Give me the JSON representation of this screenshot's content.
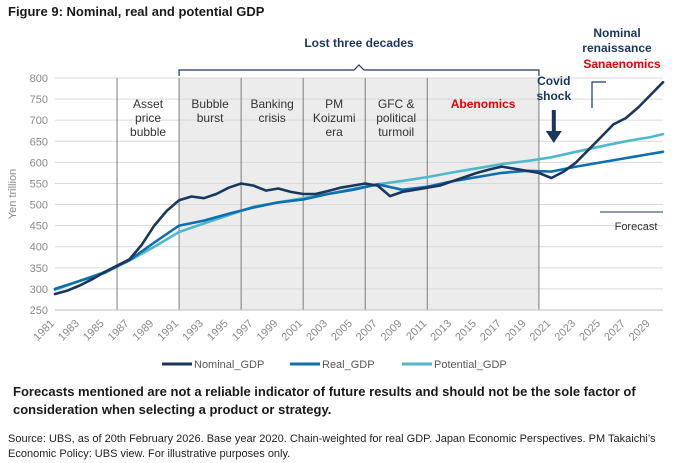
{
  "figure_title": "Figure 9: Nominal, real and potential GDP",
  "disclaimer": "Forecasts mentioned are not a reliable indicator of future results and should not be the sole factor of consideration when selecting a product or strategy.",
  "source": "Source: UBS, as of 20th February 2026. Base year 2020. Chain-weighted for real GDP. Japan Economic Perspectives. PM Takaichi’s Economic Policy: UBS view. For illustrative purposes only.",
  "colors": {
    "nominal": "#1b365d",
    "real": "#0c6fae",
    "potential": "#4fb9c9",
    "shade": "#ececec",
    "accent_red": "#e60000",
    "grid": "#d9d9d9",
    "axis_text": "#8a8a8a"
  },
  "chart_data": {
    "type": "line",
    "title": "Figure 9: Nominal, real and potential GDP",
    "ylabel": "Yen trillion",
    "xlabel": "",
    "xlim": [
      1981,
      2030
    ],
    "ylim": [
      250,
      800
    ],
    "yticks": [
      250,
      300,
      350,
      400,
      450,
      500,
      550,
      600,
      650,
      700,
      750,
      800
    ],
    "xticks": [
      1981,
      1983,
      1985,
      1987,
      1989,
      1991,
      1993,
      1995,
      1997,
      1999,
      2001,
      2003,
      2005,
      2007,
      2009,
      2011,
      2013,
      2015,
      2017,
      2019,
      2021,
      2023,
      2025,
      2027,
      2029
    ],
    "legend_position": "bottom",
    "series": [
      {
        "name": "Nominal_GDP",
        "color": "#1b365d",
        "x": [
          1981,
          1982,
          1983,
          1984,
          1985,
          1986,
          1987,
          1988,
          1989,
          1990,
          1991,
          1992,
          1993,
          1994,
          1995,
          1996,
          1997,
          1998,
          1999,
          2000,
          2001,
          2002,
          2003,
          2004,
          2005,
          2006,
          2007,
          2008,
          2009,
          2010,
          2011,
          2012,
          2013,
          2014,
          2015,
          2016,
          2017,
          2018,
          2019,
          2020,
          2021,
          2022,
          2023,
          2024,
          2025,
          2026,
          2027,
          2028,
          2029,
          2030
        ],
        "values": [
          288,
          296,
          308,
          323,
          340,
          355,
          370,
          405,
          450,
          485,
          510,
          519,
          515,
          525,
          540,
          550,
          545,
          533,
          538,
          530,
          525,
          525,
          532,
          540,
          545,
          550,
          545,
          520,
          530,
          535,
          540,
          545,
          555,
          565,
          575,
          583,
          590,
          585,
          580,
          575,
          563,
          578,
          600,
          630,
          660,
          690,
          705,
          730,
          760,
          790
        ]
      },
      {
        "name": "Real_GDP",
        "color": "#0c6fae",
        "x": [
          1981,
          1985,
          1987,
          1989,
          1991,
          1993,
          1995,
          1997,
          1999,
          2001,
          2003,
          2005,
          2007,
          2009,
          2011,
          2013,
          2015,
          2017,
          2019,
          2021,
          2023,
          2025,
          2027,
          2029,
          2030
        ],
        "values": [
          300,
          338,
          368,
          410,
          450,
          462,
          478,
          493,
          505,
          512,
          525,
          535,
          548,
          535,
          542,
          555,
          565,
          575,
          580,
          578,
          590,
          600,
          610,
          620,
          625
        ]
      },
      {
        "name": "Potential_GDP",
        "color": "#4fb9c9",
        "x": [
          1981,
          1985,
          1987,
          1989,
          1991,
          1993,
          1995,
          1997,
          1999,
          2001,
          2003,
          2005,
          2007,
          2009,
          2011,
          2013,
          2015,
          2017,
          2019,
          2021,
          2023,
          2025,
          2027,
          2029,
          2030
        ],
        "values": [
          298,
          340,
          367,
          400,
          435,
          455,
          475,
          495,
          505,
          515,
          525,
          537,
          548,
          556,
          565,
          576,
          586,
          596,
          603,
          612,
          625,
          638,
          650,
          660,
          667
        ]
      }
    ],
    "periods": [
      {
        "label_lines": [
          "Asset",
          "price",
          "bubble"
        ],
        "from": 1986,
        "to": 1991,
        "shaded": false
      },
      {
        "label_lines": [
          "Bubble",
          "burst"
        ],
        "from": 1991,
        "to": 1996,
        "shaded": true
      },
      {
        "label_lines": [
          "Banking",
          "crisis"
        ],
        "from": 1996,
        "to": 2001,
        "shaded": true
      },
      {
        "label_lines": [
          "PM",
          "Koizumi",
          "era"
        ],
        "from": 2001,
        "to": 2006,
        "shaded": true
      },
      {
        "label_lines": [
          "GFC &",
          "political",
          "turmoil"
        ],
        "from": 2006,
        "to": 2011,
        "shaded": true
      },
      {
        "label_lines": [
          "Abenomics"
        ],
        "from": 2011,
        "to": 2020,
        "shaded": true,
        "highlight": true
      }
    ],
    "annotations": {
      "lost_decades": "Lost three decades",
      "covid_shock": [
        "Covid",
        "shock"
      ],
      "nominal_renaissance": [
        "Nominal",
        "renaissance"
      ],
      "sanaenomics": "Sanaenomics",
      "forecast": "Forecast"
    }
  }
}
